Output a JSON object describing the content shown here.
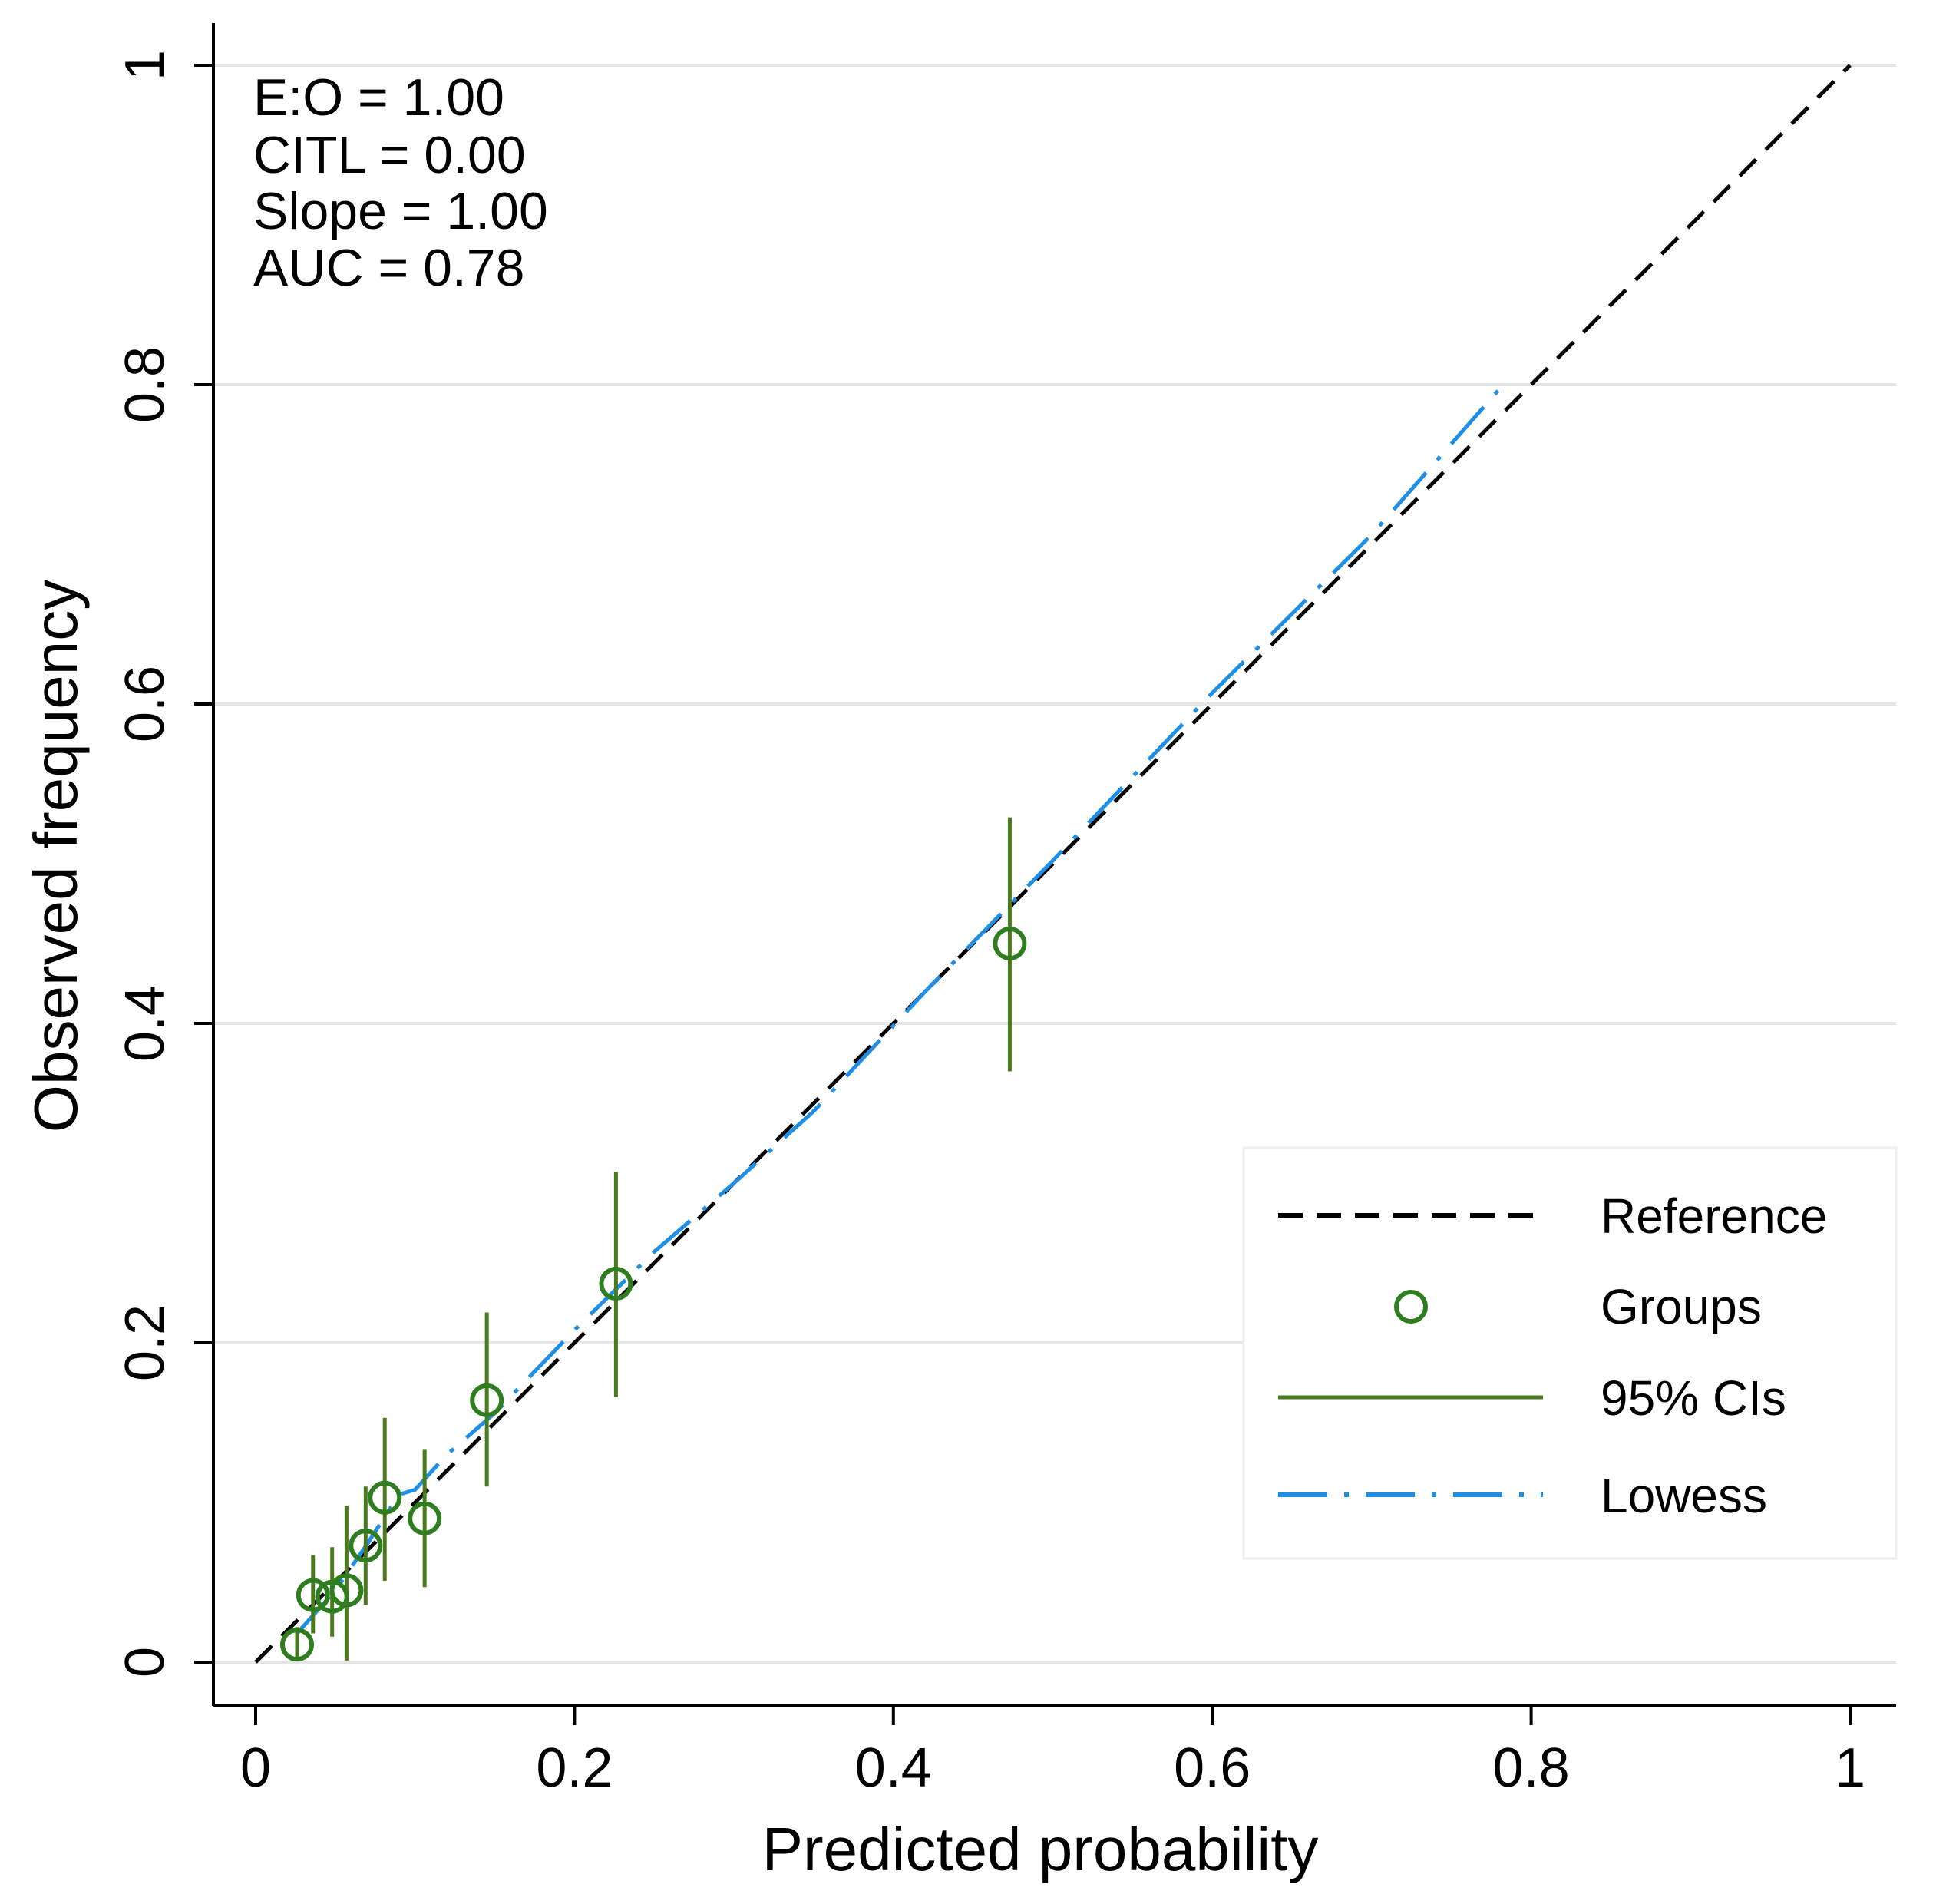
{
  "chart_data": {
    "type": "scatter",
    "xlabel": "Predicted probability",
    "ylabel": "Observed frequency",
    "xlim": [
      0,
      1
    ],
    "ylim": [
      0,
      1
    ],
    "x_ticks": [
      "0",
      "0.2",
      "0.4",
      "0.6",
      "0.8",
      "1"
    ],
    "y_ticks": [
      "0",
      "0.2",
      "0.4",
      "0.6",
      "0.8",
      "1"
    ],
    "grid": "horizontal",
    "stats": [
      "E:O = 1.00",
      "CITL = 0.00",
      "Slope = 1.00",
      "AUC = 0.78"
    ],
    "legend_position": "bottom-right",
    "legend": [
      "Reference",
      "Groups",
      "95% CIs",
      "Lowess"
    ],
    "series": [
      {
        "name": "Reference",
        "kind": "line",
        "style": "dashed",
        "color": "#000000",
        "x": [
          0,
          1
        ],
        "y": [
          0,
          1
        ]
      },
      {
        "name": "Groups",
        "kind": "points",
        "color": "#2e7d1f",
        "x": [
          0.026,
          0.036,
          0.048,
          0.057,
          0.069,
          0.081,
          0.106,
          0.145,
          0.226,
          0.473
        ],
        "y": [
          0.011,
          0.042,
          0.041,
          0.045,
          0.073,
          0.103,
          0.09,
          0.164,
          0.237,
          0.45
        ]
      },
      {
        "name": "95% CIs",
        "kind": "errorbars",
        "color": "#4a7a1e",
        "x": [
          0.026,
          0.036,
          0.048,
          0.057,
          0.069,
          0.081,
          0.106,
          0.145,
          0.226,
          0.473
        ],
        "lower": [
          0.003,
          0.018,
          0.016,
          0.001,
          0.036,
          0.051,
          0.047,
          0.11,
          0.166,
          0.37
        ],
        "upper": [
          0.022,
          0.067,
          0.072,
          0.098,
          0.11,
          0.153,
          0.133,
          0.219,
          0.307,
          0.529
        ]
      },
      {
        "name": "Lowess",
        "kind": "line",
        "style": "dash-dot",
        "color": "#1f8fe6",
        "x": [
          0.026,
          0.05,
          0.07,
          0.09,
          0.1,
          0.12,
          0.15,
          0.2,
          0.25,
          0.3,
          0.35,
          0.42,
          0.5,
          0.6,
          0.7,
          0.786
        ],
        "y": [
          0.018,
          0.045,
          0.074,
          0.105,
          0.108,
          0.13,
          0.156,
          0.208,
          0.257,
          0.3,
          0.345,
          0.42,
          0.502,
          0.607,
          0.706,
          0.804
        ]
      }
    ]
  }
}
